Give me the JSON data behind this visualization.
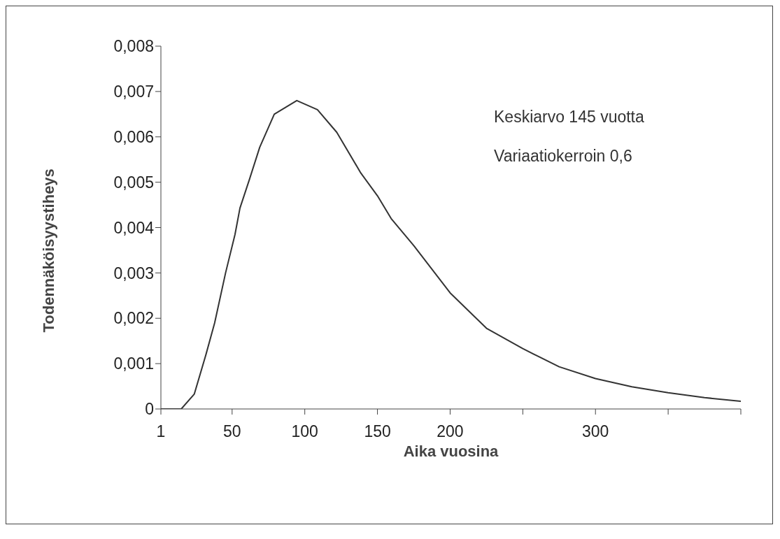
{
  "chart_data": {
    "type": "line",
    "xlabel": "Aika vuosina",
    "ylabel": "Todennäköisyystiheys",
    "annotations": [
      "Keskiarvo 145 vuotta",
      "Variaatiokerroin 0,6"
    ],
    "series": [
      {
        "color": "#333333",
        "x": [
          1,
          15,
          24,
          32,
          38,
          45.5,
          52,
          55.4,
          62,
          69,
          79,
          94.5,
          108.7,
          122,
          138.6,
          150,
          159.4,
          175,
          200,
          225,
          250,
          275,
          300,
          325,
          350,
          375,
          400
        ],
        "values": [
          0,
          0,
          0.00033,
          0.0012,
          0.0019,
          0.003,
          0.00385,
          0.00443,
          0.00507,
          0.00577,
          0.0065,
          0.0068,
          0.0066,
          0.0061,
          0.0052,
          0.0047,
          0.0042,
          0.0036,
          0.00256,
          0.00178,
          0.00133,
          0.00093,
          0.00067,
          0.00049,
          0.00036,
          0.00025,
          0.00017
        ]
      }
    ],
    "xlim": [
      1,
      400
    ],
    "xticks": [
      1,
      50,
      100,
      150,
      200,
      {
        "value": 250,
        "label": null
      },
      300,
      {
        "value": 350,
        "label": null
      },
      {
        "value": 400,
        "label": null
      }
    ],
    "ylim": [
      0,
      0.008
    ],
    "yticks": [
      0,
      {
        "value": 0.001,
        "label": "0,001"
      },
      {
        "value": 0.002,
        "label": "0,002"
      },
      {
        "value": 0.003,
        "label": "0,003"
      },
      {
        "value": 0.004,
        "label": "0,004"
      },
      {
        "value": 0.005,
        "label": "0,005"
      },
      {
        "value": 0.006,
        "label": "0,006"
      },
      {
        "value": 0.007,
        "label": "0,007"
      },
      {
        "value": 0.008,
        "label": "0,008"
      }
    ],
    "grid": false,
    "legend": false,
    "marker": "none",
    "line_style": "solid"
  }
}
